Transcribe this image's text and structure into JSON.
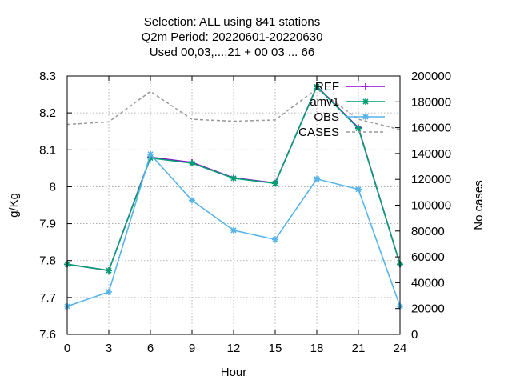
{
  "chart_data": {
    "type": "line",
    "title_lines": [
      "Selection: ALL using   841 stations",
      "Q2m   Period: 20220601-20220630",
      "Used  00,03,...,21  + 00 03 ... 66"
    ],
    "xlabel": "Hour",
    "ylabel": "g/Kg",
    "y2label": "No cases",
    "x": [
      0,
      3,
      6,
      9,
      12,
      15,
      18,
      21,
      24
    ],
    "xlim": [
      0,
      24
    ],
    "ylim": [
      7.6,
      8.3
    ],
    "y2lim": [
      0,
      200000
    ],
    "xticks": [
      0,
      3,
      6,
      9,
      12,
      15,
      18,
      21,
      24
    ],
    "yticks": [
      7.6,
      7.7,
      7.8,
      7.9,
      8,
      8.1,
      8.2,
      8.3
    ],
    "y2ticks": [
      0,
      20000,
      40000,
      60000,
      80000,
      100000,
      120000,
      140000,
      160000,
      180000,
      200000
    ],
    "grid": true,
    "legend_position": "top-right",
    "series": [
      {
        "name": "REF",
        "color": "#9400d3",
        "axis": "y1",
        "style": "solid",
        "marker": "plus",
        "values": [
          7.79,
          7.773,
          8.08,
          8.066,
          8.024,
          8.01,
          8.272,
          8.16,
          7.79
        ]
      },
      {
        "name": "amv1",
        "color": "#009e73",
        "axis": "y1",
        "style": "solid",
        "marker": "star",
        "values": [
          7.79,
          7.773,
          8.078,
          8.064,
          8.023,
          8.009,
          8.271,
          8.158,
          7.79
        ]
      },
      {
        "name": "OBS",
        "color": "#56b4e9",
        "axis": "y1",
        "style": "solid",
        "marker": "star",
        "values": [
          7.676,
          7.715,
          8.088,
          7.963,
          7.882,
          7.857,
          8.021,
          7.993,
          7.676
        ]
      },
      {
        "name": "CASES",
        "color": "#999999",
        "axis": "y2",
        "style": "dashed",
        "marker": "none",
        "values": [
          162500,
          164500,
          188000,
          166500,
          165000,
          166000,
          190000,
          166500,
          158500
        ]
      }
    ]
  }
}
